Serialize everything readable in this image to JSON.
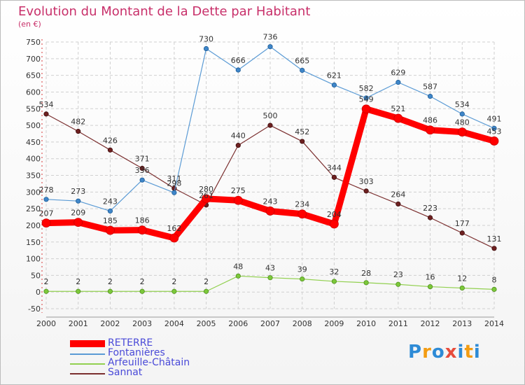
{
  "title": "Evolution du Montant de la Dette par Habitant",
  "unit_label": "(en €)",
  "logo_text": "Proxiti",
  "chart_data": {
    "type": "line",
    "title": "Evolution du Montant de la Dette par Habitant",
    "ylabel": "(en €)",
    "xlabel": "",
    "x": [
      2000,
      2001,
      2002,
      2003,
      2004,
      2005,
      2006,
      2007,
      2008,
      2009,
      2010,
      2011,
      2012,
      2013,
      2014
    ],
    "ylim": [
      -50,
      750
    ],
    "yticks": [
      -50,
      0,
      50,
      100,
      150,
      200,
      250,
      300,
      350,
      400,
      450,
      500,
      550,
      600,
      650,
      700,
      750
    ],
    "grid": true,
    "legend_position": "bottom-left",
    "series": [
      {
        "name": "RETERRE",
        "color": "#ff0000",
        "values": [
          207,
          209,
          185,
          186,
          162,
          280,
          275,
          243,
          234,
          204,
          549,
          521,
          486,
          480,
          453
        ]
      },
      {
        "name": "Fontanières",
        "color": "#5b9bd5",
        "values": [
          278,
          273,
          243,
          336,
          298,
          730,
          666,
          736,
          665,
          621,
          582,
          629,
          587,
          534,
          491
        ]
      },
      {
        "name": "Arfeuille-Châtain",
        "color": "#92d050",
        "values": [
          2,
          2,
          2,
          2,
          2,
          2,
          48,
          43,
          39,
          32,
          28,
          23,
          16,
          12,
          8
        ]
      },
      {
        "name": "Sannat",
        "color": "#7b2f2f",
        "values": [
          534,
          482,
          426,
          371,
          311,
          261,
          440,
          500,
          452,
          344,
          303,
          264,
          223,
          177,
          131
        ]
      }
    ],
    "value_labels": [
      [
        "207",
        "209",
        "185",
        "186",
        "162",
        "280",
        "275",
        "243",
        "234",
        "204",
        "549",
        "521",
        "486",
        "480",
        "453"
      ],
      [
        "278",
        "273",
        "243",
        "336",
        "298",
        "730",
        "666",
        "736",
        "665",
        "621",
        "582",
        "629",
        "587",
        "534",
        "491"
      ],
      [
        "2",
        "2",
        "2",
        "2",
        "2",
        "2",
        "48",
        "43",
        "39",
        "32",
        "28",
        "23",
        "16",
        "12",
        "8"
      ],
      [
        "534",
        "482",
        "426",
        "371",
        "311",
        "261",
        "440",
        "500",
        "452",
        "344",
        "303",
        "264",
        "223",
        "177",
        "131"
      ]
    ]
  }
}
